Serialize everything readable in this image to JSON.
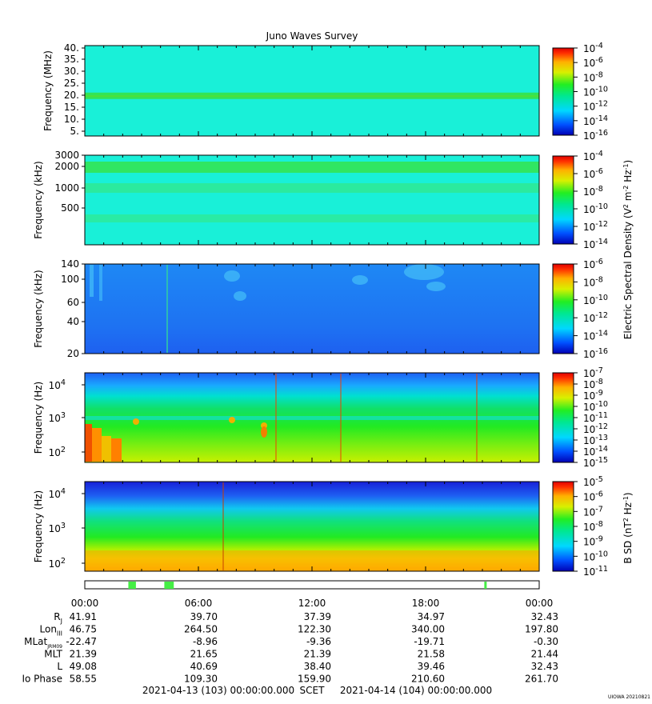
{
  "title": "Juno Waves Survey",
  "footer": {
    "start": "2021-04-13 (103) 00:00:00.000",
    "scet": "SCET",
    "end": "2021-04-14 (104) 00:00:00.000",
    "stamp": "UIOWA 20210821"
  },
  "colorbar_shared_label": "Electric Spectral Density (V2 m-2 Hz-1)",
  "chart_data": [
    {
      "type": "heatmap",
      "panel": "high-frequency",
      "ylabel": "Frequency (MHz)",
      "yticks": [
        "40.",
        "35.",
        "30.",
        "25.",
        "20.",
        "15.",
        "10.",
        "5."
      ],
      "yrange": [
        3,
        41
      ],
      "colorbar_ticks": [
        "-4",
        "-6",
        "-8",
        "-10",
        "-12",
        "-14",
        "-16"
      ],
      "background_color": "#19f0d8",
      "band_color": "#33e455",
      "band_center": 21
    },
    {
      "type": "heatmap",
      "panel": "mid-frequency",
      "ylabel": "Frequency (kHz)",
      "yticks": [
        "3000",
        "2000",
        "1000",
        "500"
      ],
      "yscale": "log",
      "colorbar_ticks": [
        "-4",
        "-6",
        "-8",
        "-10",
        "-12",
        "-14"
      ],
      "background_color": "#19f0d8"
    },
    {
      "type": "heatmap",
      "panel": "low-frequency-khz",
      "ylabel": "Frequency (kHz)",
      "yticks": [
        "140",
        "100",
        "60",
        "40",
        "20"
      ],
      "yscale": "log",
      "colorbar_ticks": [
        "-6",
        "-8",
        "-10",
        "-12",
        "-14",
        "-16"
      ],
      "background_color": "#1e7bf5"
    },
    {
      "type": "heatmap",
      "panel": "low-frequency-hz",
      "ylabel": "Frequency (Hz)",
      "yticks": [
        "10^4",
        "10^3",
        "10^2"
      ],
      "yscale": "log",
      "colorbar_ticks": [
        "-7",
        "-8",
        "-9",
        "-10",
        "-11",
        "-12",
        "-13",
        "-14",
        "-15"
      ]
    },
    {
      "type": "heatmap",
      "panel": "magnetic",
      "ylabel": "Frequency (Hz)",
      "yticks": [
        "10^4",
        "10^3",
        "10^2"
      ],
      "yscale": "log",
      "colorbar_label": "B SD (nT2 Hz-1)",
      "colorbar_ticks": [
        "-5",
        "-6",
        "-7",
        "-8",
        "-9",
        "-10",
        "-11"
      ]
    }
  ],
  "mode_bar": {
    "segments_hours": [
      [
        2.3,
        2.7
      ],
      [
        4.2,
        4.7
      ],
      [
        21.1,
        21.2
      ]
    ],
    "color": "#44ee44"
  },
  "ephemeris": {
    "times": [
      "00:00",
      "06:00",
      "12:00",
      "18:00",
      "00:00"
    ],
    "rows": [
      {
        "name": "R",
        "sub": "J",
        "values": [
          "41.91",
          "39.70",
          "37.39",
          "34.97",
          "32.43"
        ]
      },
      {
        "name": "Lon",
        "sub": "III",
        "values": [
          "46.75",
          "264.50",
          "122.30",
          "340.00",
          "197.80"
        ]
      },
      {
        "name": "MLat",
        "sub": "JRM09",
        "values": [
          "-22.47",
          "-8.96",
          "-9.36",
          "-19.71",
          "-0.30"
        ]
      },
      {
        "name": "MLT",
        "sub": "",
        "values": [
          "21.39",
          "21.65",
          "21.39",
          "21.58",
          "21.44"
        ]
      },
      {
        "name": "L",
        "sub": "",
        "values": [
          "49.08",
          "40.69",
          "38.40",
          "39.46",
          "32.43"
        ]
      },
      {
        "name": "Io Phase",
        "sub": "",
        "values": [
          "58.55",
          "109.30",
          "159.90",
          "210.60",
          "261.70"
        ]
      }
    ]
  }
}
